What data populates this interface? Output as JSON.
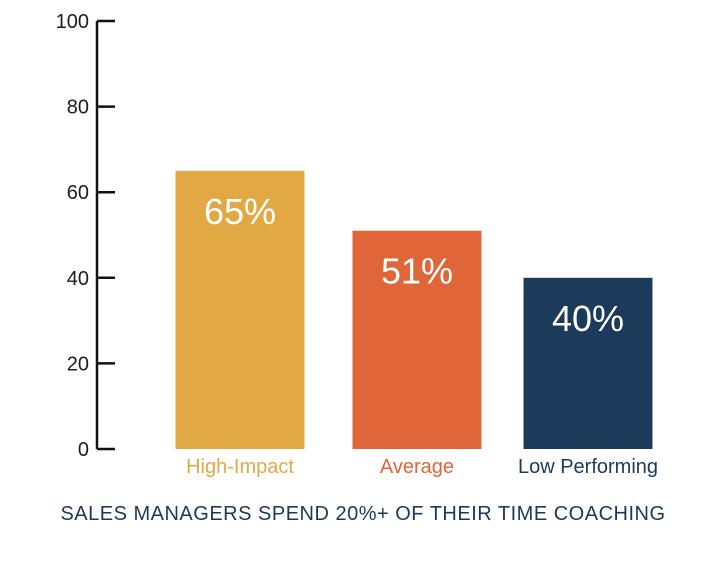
{
  "chart_data": {
    "type": "bar",
    "title": "",
    "xlabel": "",
    "ylabel": "",
    "ylim": [
      0,
      100
    ],
    "yticks": [
      0,
      20,
      40,
      60,
      80,
      100
    ],
    "grid": false,
    "categories": [
      "High-Impact",
      "Average",
      "Low Performing"
    ],
    "values": [
      65,
      51,
      40
    ],
    "data_labels": [
      "65%",
      "51%",
      "40%"
    ],
    "colors": [
      "#e2a843",
      "#e0663a",
      "#1c3a5a"
    ],
    "category_label_colors": [
      "#e2a843",
      "#e0663a",
      "#1c3a5a"
    ],
    "caption": "SALES MANAGERS SPEND 20%+ OF THEIR TIME COACHING"
  }
}
